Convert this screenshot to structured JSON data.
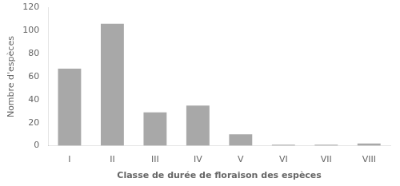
{
  "chart_data": {
    "type": "bar",
    "categories": [
      "I",
      "II",
      "III",
      "IV",
      "V",
      "VI",
      "VII",
      "VIII"
    ],
    "values": [
      67,
      106,
      29,
      35,
      10,
      1,
      1,
      2
    ],
    "color": "#a8a8a8",
    "xlabel": "Classe de durée de floraison des espèces",
    "ylabel": "Nombre d'espèces",
    "ylim": [
      0,
      120
    ],
    "yticks": [
      0,
      20,
      40,
      60,
      80,
      100,
      120
    ],
    "grid": false
  }
}
